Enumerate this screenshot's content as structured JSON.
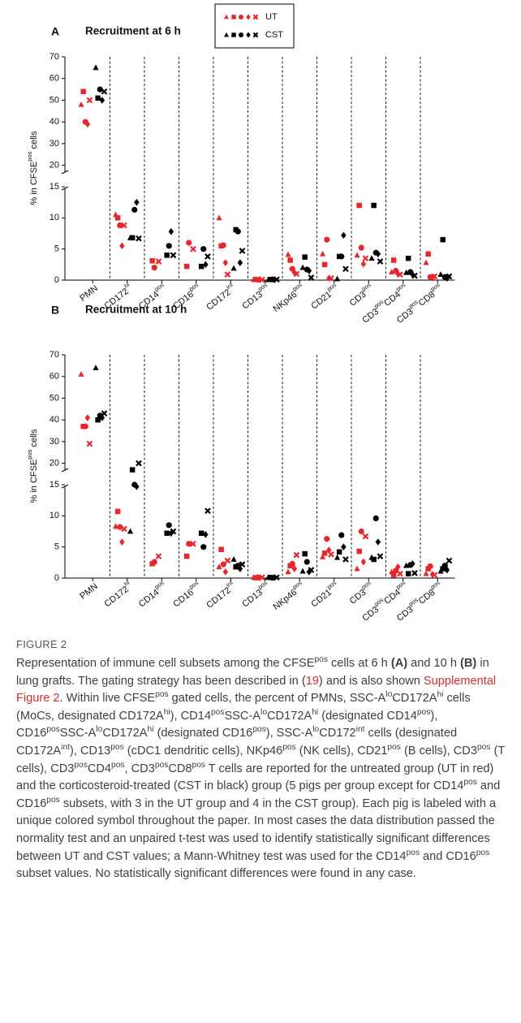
{
  "chart_data": [
    {
      "type": "strip",
      "panel": "A",
      "title": "Recruitment at 6 h",
      "ylabel": [
        "% in CFSE",
        {
          "text": "pos",
          "style": "sup"
        },
        " cells"
      ],
      "categories": [
        [
          "PMN"
        ],
        [
          "CD172",
          {
            "text": "hi",
            "style": "sup"
          }
        ],
        [
          "CD14",
          {
            "text": "pos",
            "style": "sup"
          }
        ],
        [
          "CD16",
          {
            "text": "pos",
            "style": "sup"
          }
        ],
        [
          "CD172",
          {
            "text": "int",
            "style": "sup"
          }
        ],
        [
          "CD13",
          {
            "text": "pos",
            "style": "sup"
          }
        ],
        [
          "NKp46",
          {
            "text": "pos",
            "style": "sup"
          }
        ],
        [
          "CD21",
          {
            "text": "pos",
            "style": "sup"
          }
        ],
        [
          "CD3",
          {
            "text": "pos",
            "style": "sup"
          }
        ],
        [
          "CD3",
          {
            "text": "pos",
            "style": "sup"
          },
          "CD4",
          {
            "text": "pos",
            "style": "sup"
          }
        ],
        [
          "CD3",
          {
            "text": "pos",
            "style": "sup"
          },
          "CD8",
          {
            "text": "pos",
            "style": "sup"
          }
        ]
      ],
      "markers": [
        "triangle",
        "square",
        "circle",
        "diamond",
        "x"
      ],
      "groups": [
        {
          "name": "UT",
          "color": "#e8262b",
          "values": [
            [
              48,
              54,
              40,
              39,
              50
            ],
            [
              10.5,
              10,
              8.8,
              5.5,
              8.8
            ],
            [
              null,
              3.1,
              2,
              null,
              3
            ],
            [
              null,
              2.2,
              6,
              null,
              5
            ],
            [
              10,
              5.5,
              5.6,
              2.8,
              0.9
            ],
            [
              0.1,
              0.1,
              0.05,
              0.1,
              0.05
            ],
            [
              4.1,
              3.2,
              1.8,
              1.2,
              1
            ],
            [
              4.2,
              2.5,
              6.5,
              0.3,
              0.3
            ],
            [
              4,
              12,
              5.2,
              2.6,
              3.5
            ],
            [
              1.3,
              3.2,
              1.5,
              1,
              0.9
            ],
            [
              2.8,
              4.2,
              0.5,
              0.3,
              0.6
            ]
          ]
        },
        {
          "name": "CST",
          "color": "#000000",
          "values": [
            [
              65,
              51,
              55,
              50,
              54
            ],
            [
              6.8,
              6.8,
              11.3,
              12.5,
              6.7
            ],
            [
              null,
              4,
              5.5,
              7.8,
              4
            ],
            [
              null,
              2.2,
              5,
              2.5,
              3.8
            ],
            [
              1.9,
              8.1,
              7.8,
              2.8,
              4.7
            ],
            [
              0.05,
              0.1,
              0.1,
              0.05,
              0.1
            ],
            [
              2,
              3.7,
              1.7,
              1.5,
              0.4
            ],
            [
              0.2,
              3.8,
              3.8,
              7.2,
              1.8
            ],
            [
              3.5,
              12,
              4.4,
              4.2,
              3
            ],
            [
              1.2,
              3.5,
              1.3,
              0.9,
              0.7
            ],
            [
              0.9,
              6.5,
              0.5,
              0.3,
              0.6
            ]
          ]
        }
      ],
      "ylim": [
        0,
        15
      ],
      "yticks": [
        0,
        5,
        10,
        15
      ],
      "ylim_upper": [
        15,
        70
      ],
      "yticks_upper": [
        20,
        30,
        40,
        50,
        60,
        70
      ],
      "legend": true
    },
    {
      "type": "strip",
      "panel": "B",
      "title": "Recruitment at 10 h",
      "ylabel": [
        "% in CFSE",
        {
          "text": "pos",
          "style": "sup"
        },
        " cells"
      ],
      "categories": [
        [
          "PMN"
        ],
        [
          "CD172",
          {
            "text": "hi",
            "style": "sup"
          }
        ],
        [
          "CD14",
          {
            "text": "pos",
            "style": "sup"
          }
        ],
        [
          "CD16",
          {
            "text": "pos",
            "style": "sup"
          }
        ],
        [
          "CD172",
          {
            "text": "int",
            "style": "sup"
          }
        ],
        [
          "CD13",
          {
            "text": "pos",
            "style": "sup"
          }
        ],
        [
          "NKp46",
          {
            "text": "pos",
            "style": "sup"
          }
        ],
        [
          "CD21",
          {
            "text": "pos",
            "style": "sup"
          }
        ],
        [
          "CD3",
          {
            "text": "pos",
            "style": "sup"
          }
        ],
        [
          "CD3",
          {
            "text": "pos",
            "style": "sup"
          },
          "CD4",
          {
            "text": "pos",
            "style": "sup"
          }
        ],
        [
          "CD3",
          {
            "text": "pos",
            "style": "sup"
          },
          "CD8",
          {
            "text": "pos",
            "style": "sup"
          }
        ]
      ],
      "markers": [
        "triangle",
        "square",
        "circle",
        "diamond",
        "x"
      ],
      "groups": [
        {
          "name": "UT",
          "color": "#e8262b",
          "values": [
            [
              61,
              37,
              37,
              41,
              29
            ],
            [
              8.3,
              10.7,
              8.2,
              5.8,
              7.9
            ],
            [
              null,
              2.3,
              2.6,
              null,
              3.5
            ],
            [
              null,
              3.5,
              5.5,
              null,
              5.5
            ],
            [
              1.8,
              4.6,
              2.2,
              1,
              2.8
            ],
            [
              0.1,
              0.05,
              0.1,
              0.05,
              0.1
            ],
            [
              1,
              2,
              2.3,
              1.5,
              3.7
            ],
            [
              3.4,
              4,
              6.3,
              4.5,
              3.8
            ],
            [
              1.5,
              4.3,
              7.5,
              2.6,
              6.7
            ],
            [
              1,
              0.5,
              1.2,
              1.8,
              0.7
            ],
            [
              0.7,
              1.5,
              1.9,
              0.6,
              0.5
            ]
          ]
        },
        {
          "name": "CST",
          "color": "#000000",
          "values": [
            [
              64,
              40,
              42,
              41,
              43
            ],
            [
              7.5,
              17,
              15,
              14.7,
              20
            ],
            [
              null,
              7.2,
              8.5,
              7.2,
              7.5
            ],
            [
              null,
              7.2,
              5,
              7,
              10.8
            ],
            [
              3,
              1.8,
              2,
              1.5,
              2.2
            ],
            [
              0.1,
              0.1,
              0.05,
              0.1,
              0.1
            ],
            [
              1.1,
              3.9,
              2.6,
              1,
              1.3
            ],
            [
              3.3,
              4.2,
              6.9,
              5,
              3
            ],
            [
              3.3,
              3,
              9.6,
              5.8,
              3.5
            ],
            [
              2,
              0.7,
              2.1,
              2.3,
              0.8
            ],
            [
              1.1,
              1.5,
              2,
              1.3,
              2.8
            ]
          ]
        }
      ],
      "ylim": [
        0,
        15
      ],
      "yticks": [
        0,
        5,
        10,
        15
      ],
      "ylim_upper": [
        15,
        70
      ],
      "yticks_upper": [
        20,
        30,
        40,
        50,
        60,
        70
      ],
      "legend": false
    }
  ],
  "caption": {
    "label": "FIGURE 2",
    "runs": [
      "Representation of immune cell subsets among the CFSE",
      {
        "text": "pos",
        "style": "sup"
      },
      " cells at 6 h ",
      {
        "text": "(A)",
        "style": "bold"
      },
      " and 10 h ",
      {
        "text": "(B)",
        "style": "bold"
      },
      " in lung grafts. The gating strategy has been described in (",
      {
        "text": "19",
        "style": "link"
      },
      ") and is also shown ",
      {
        "text": "Supplemental Figure 2",
        "style": "link"
      },
      ". Within live CFSE",
      {
        "text": "pos",
        "style": "sup"
      },
      " gated cells, the percent of PMNs, SSC-A",
      {
        "text": "lo",
        "style": "sup"
      },
      "CD172A",
      {
        "text": "hi",
        "style": "sup"
      },
      " cells (MoCs, designated CD172A",
      {
        "text": "hi",
        "style": "sup"
      },
      "), CD14",
      {
        "text": "pos",
        "style": "sup"
      },
      "SSC-A",
      {
        "text": "lo",
        "style": "sup"
      },
      "CD172A",
      {
        "text": "hi",
        "style": "sup"
      },
      " (designated CD14",
      {
        "text": "pos",
        "style": "sup"
      },
      "), CD16",
      {
        "text": "pos",
        "style": "sup"
      },
      "SSC-A",
      {
        "text": "lo",
        "style": "sup"
      },
      "CD172A",
      {
        "text": "hi",
        "style": "sup"
      },
      " (designated CD16",
      {
        "text": "pos",
        "style": "sup"
      },
      "), SSC-A",
      {
        "text": "lo",
        "style": "sup"
      },
      "CD172",
      {
        "text": "int",
        "style": "sup"
      },
      " cells (designated CD172A",
      {
        "text": "int",
        "style": "sup"
      },
      "), CD13",
      {
        "text": "pos",
        "style": "sup"
      },
      " (cDC1 dendritic cells), NKp46",
      {
        "text": "pos",
        "style": "sup"
      },
      " (NK cells), CD21",
      {
        "text": "pos",
        "style": "sup"
      },
      " (B cells), CD3",
      {
        "text": "pos",
        "style": "sup"
      },
      " (T cells), CD3",
      {
        "text": "pos",
        "style": "sup"
      },
      "CD4",
      {
        "text": "pos",
        "style": "sup"
      },
      ", CD3",
      {
        "text": "pos",
        "style": "sup"
      },
      "CD8",
      {
        "text": "pos",
        "style": "sup"
      },
      " T cells are reported for the untreated group (UT in red) and the corticosteroid-treated (CST in black) group (5 pigs per group except for CD14",
      {
        "text": "pos",
        "style": "sup"
      },
      " and CD16",
      {
        "text": "pos",
        "style": "sup"
      },
      " subsets, with 3 in the UT group and 4 in the CST group). Each pig is labeled with a unique colored symbol throughout the paper. In most cases the data distribution passed the normality test and an unpaired t-test was used to identify statistically significant differences between UT and CST values; a Mann-Whitney test was used for the CD14",
      {
        "text": "pos",
        "style": "sup"
      },
      " and CD16",
      {
        "text": "pos",
        "style": "sup"
      },
      " subset values. No statistically significant differences were found in any case."
    ]
  }
}
